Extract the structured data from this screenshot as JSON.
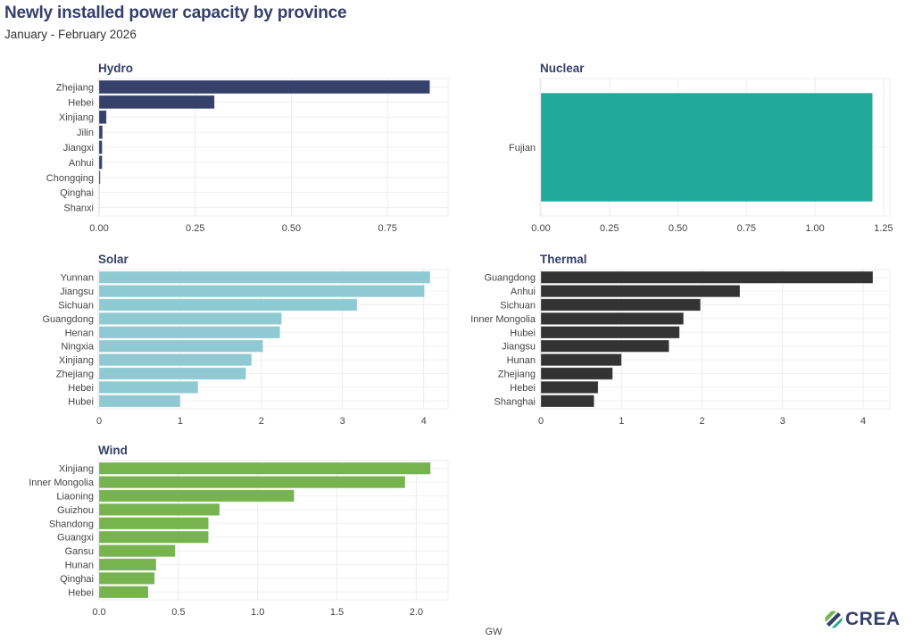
{
  "header": {
    "title": "Newly installed power capacity by province",
    "subtitle": "January - February 2026"
  },
  "logo": {
    "text": "CREA"
  },
  "chart_data": [
    {
      "type": "bar",
      "orientation": "horizontal",
      "title": "Hydro",
      "color": "#35406b",
      "categories": [
        "Zhejiang",
        "Hebei",
        "Xinjiang",
        "Jilin",
        "Jiangxi",
        "Anhui",
        "Chongqing",
        "Qinghai",
        "Shanxi"
      ],
      "values": [
        0.86,
        0.3,
        0.019,
        0.009,
        0.008,
        0.008,
        0.003,
        0.0005,
        0.0003
      ],
      "xlim": [
        0,
        0.905
      ],
      "xticks": [
        0,
        0.25,
        0.5,
        0.75
      ],
      "xtick_labels": [
        "0.00",
        "0.25",
        "0.50",
        "0.75"
      ],
      "xlabel": "",
      "ylabel": "",
      "grid": true
    },
    {
      "type": "bar",
      "orientation": "horizontal",
      "title": "Nuclear",
      "color": "#22a79b",
      "categories": [
        "Fujian"
      ],
      "values": [
        1.21
      ],
      "xlim": [
        0,
        1.27
      ],
      "xticks": [
        0,
        0.25,
        0.5,
        0.75,
        1.0,
        1.25
      ],
      "xtick_labels": [
        "0.00",
        "0.25",
        "0.50",
        "0.75",
        "1.00",
        "1.25"
      ],
      "xlabel": "",
      "ylabel": "",
      "grid": true
    },
    {
      "type": "bar",
      "orientation": "horizontal",
      "title": "Solar",
      "color": "#8fcad2",
      "categories": [
        "Yunnan",
        "Jiangsu",
        "Sichuan",
        "Guangdong",
        "Henan",
        "Ningxia",
        "Xinjiang",
        "Zhejiang",
        "Hebei",
        "Hubei"
      ],
      "values": [
        4.08,
        4.01,
        3.18,
        2.25,
        2.23,
        2.02,
        1.88,
        1.81,
        1.22,
        1.0
      ],
      "xlim": [
        0,
        4.29
      ],
      "xticks": [
        0,
        1,
        2,
        3,
        4
      ],
      "xtick_labels": [
        "0",
        "1",
        "2",
        "3",
        "4"
      ],
      "xlabel": "",
      "ylabel": "",
      "grid": true
    },
    {
      "type": "bar",
      "orientation": "horizontal",
      "title": "Thermal",
      "color": "#333333",
      "categories": [
        "Guangdong",
        "Anhui",
        "Sichuan",
        "Inner Mongolia",
        "Hubei",
        "Jiangsu",
        "Hunan",
        "Zhejiang",
        "Hebei",
        "Shanghai"
      ],
      "values": [
        4.12,
        2.47,
        1.98,
        1.77,
        1.72,
        1.59,
        1.0,
        0.89,
        0.71,
        0.66
      ],
      "xlim": [
        0,
        4.32
      ],
      "xticks": [
        0,
        1,
        2,
        3,
        4
      ],
      "xtick_labels": [
        "0",
        "1",
        "2",
        "3",
        "4"
      ],
      "xlabel": "",
      "ylabel": "",
      "grid": true
    },
    {
      "type": "bar",
      "orientation": "horizontal",
      "title": "Wind",
      "color": "#77b450",
      "categories": [
        "Xinjiang",
        "Inner Mongolia",
        "Liaoning",
        "Guizhou",
        "Shandong",
        "Guangxi",
        "Gansu",
        "Hunan",
        "Qinghai",
        "Hebei"
      ],
      "values": [
        2.09,
        1.93,
        1.23,
        0.76,
        0.69,
        0.69,
        0.48,
        0.36,
        0.35,
        0.31
      ],
      "xlim": [
        0,
        2.195
      ],
      "xticks": [
        0,
        0.5,
        1.0,
        1.5,
        2.0
      ],
      "xtick_labels": [
        "0.0",
        "0.5",
        "1.0",
        "1.5",
        "2.0"
      ],
      "xlabel": "",
      "ylabel": "",
      "grid": true
    }
  ],
  "shared_xlabel": "GW"
}
